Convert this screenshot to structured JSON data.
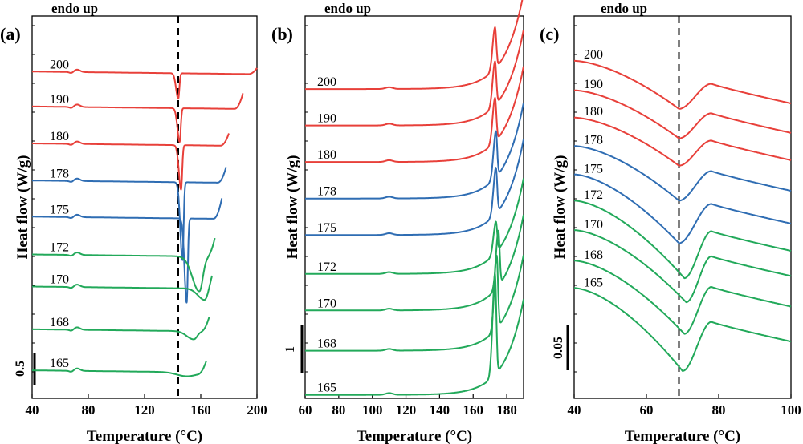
{
  "figure": {
    "panels": [
      "(a)",
      "(b)",
      "(c)"
    ],
    "endo_label": "endo up",
    "xlabel": "Temperature (°C)",
    "ylabel": "Heat flow (W/g)"
  },
  "colors": {
    "red": "#e8403a",
    "blue": "#2f6db3",
    "green": "#22a95a"
  },
  "chart_data": [
    {
      "type": "line",
      "panel": "(a)",
      "xlabel": "Temperature (°C)",
      "ylabel": "Heat flow (W/g)",
      "xlim": [
        40,
        200
      ],
      "xticks": [
        40,
        80,
        120,
        160,
        200
      ],
      "top_label": "endo up",
      "reference_line_x": 144,
      "scale_bar": {
        "label": "0.5",
        "value": 0.5
      },
      "series": [
        {
          "name": "200",
          "color": "red",
          "baseline": 7.95,
          "x_end": 200,
          "peak_type": "sharp_exo",
          "peak_x": 144,
          "depth": 0.62,
          "end_rise": 0.15
        },
        {
          "name": "190",
          "color": "red",
          "baseline": 7.1,
          "x_end": 190,
          "peak_type": "sharp_exo",
          "peak_x": 145,
          "depth": 0.82,
          "end_rise": 0.38
        },
        {
          "name": "180",
          "color": "red",
          "baseline": 6.2,
          "x_end": 180,
          "peak_type": "sharp_exo",
          "peak_x": 146,
          "depth": 1.08,
          "end_rise": 0.3
        },
        {
          "name": "178",
          "color": "blue",
          "baseline": 5.3,
          "x_end": 178,
          "peak_type": "sharp_exo",
          "peak_x": 147,
          "depth": 1.9,
          "end_rise": 0.38
        },
        {
          "name": "175",
          "color": "blue",
          "baseline": 4.42,
          "x_end": 175,
          "peak_type": "sharp_exo",
          "peak_x": 150,
          "depth": 2.05,
          "end_rise": 0.5
        },
        {
          "name": "172",
          "color": "green",
          "baseline": 3.5,
          "x_end": 170,
          "peak_type": "broad_exo",
          "peak_x": 159,
          "depth": 0.85,
          "end_rise": 0.45
        },
        {
          "name": "170",
          "color": "green",
          "baseline": 2.72,
          "x_end": 168,
          "peak_type": "broad_exo",
          "peak_x": 163,
          "depth": 0.28,
          "end_rise": 0.35
        },
        {
          "name": "168",
          "color": "green",
          "baseline": 1.68,
          "x_end": 166,
          "peak_type": "broad_exo",
          "peak_x": 155,
          "depth": 0.2,
          "end_rise": 0.35
        },
        {
          "name": "165",
          "color": "green",
          "baseline": 0.68,
          "x_end": 164,
          "peak_type": "flat",
          "peak_x": 150,
          "depth": 0.1,
          "end_rise": 0.3
        }
      ]
    },
    {
      "type": "line",
      "panel": "(b)",
      "xlabel": "Temperature (°C)",
      "ylabel": "Heat flow (W/g)",
      "xlim": [
        60,
        190
      ],
      "xticks": [
        60,
        80,
        100,
        120,
        140,
        160,
        180
      ],
      "top_label": "endo up",
      "scale_bar": {
        "label": "1",
        "value": 1
      },
      "series": [
        {
          "name": "200",
          "color": "red",
          "baseline": 8.9,
          "peak_x": 173,
          "height": 1.2
        },
        {
          "name": "190",
          "color": "red",
          "baseline": 7.85,
          "peak_x": 173,
          "height": 1.27
        },
        {
          "name": "180",
          "color": "red",
          "baseline": 6.8,
          "peak_x": 173,
          "height": 1.27
        },
        {
          "name": "178",
          "color": "blue",
          "baseline": 5.75,
          "peak_x": 173.5,
          "height": 1.33
        },
        {
          "name": "175",
          "color": "blue",
          "baseline": 4.7,
          "peak_x": 173.5,
          "height": 1.33
        },
        {
          "name": "172",
          "color": "green",
          "baseline": 3.58,
          "peak_x": 173.5,
          "height": 0.9
        },
        {
          "name": "170",
          "color": "green",
          "baseline": 2.53,
          "peak_x": 175,
          "height": 1.6
        },
        {
          "name": "168",
          "color": "green",
          "baseline": 1.37,
          "peak_x": 174,
          "height": 2.1
        },
        {
          "name": "165",
          "color": "green",
          "baseline": 0.1,
          "peak_x": 173,
          "height": 2.9
        }
      ]
    },
    {
      "type": "line",
      "panel": "(c)",
      "xlabel": "Temperature (°C)",
      "ylabel": "Heat flow (W/g)",
      "xlim": [
        40,
        100
      ],
      "xticks": [
        40,
        60,
        80,
        100
      ],
      "top_label": "endo up",
      "reference_line_x": 69,
      "scale_bar": {
        "label": "0.05",
        "value": 0.05
      },
      "series": [
        {
          "name": "200",
          "color": "red",
          "y_start": 0.868,
          "y_min": 0.78,
          "min_x": 69,
          "y_peak": 0.826,
          "peak_x": 78,
          "y_end": 0.79
        },
        {
          "name": "190",
          "color": "red",
          "y_start": 0.814,
          "y_min": 0.726,
          "min_x": 69,
          "y_peak": 0.772,
          "peak_x": 78,
          "y_end": 0.736
        },
        {
          "name": "180",
          "color": "red",
          "y_start": 0.764,
          "y_min": 0.676,
          "min_x": 69,
          "y_peak": 0.722,
          "peak_x": 78,
          "y_end": 0.686
        },
        {
          "name": "178",
          "color": "blue",
          "y_start": 0.712,
          "y_min": 0.612,
          "min_x": 69,
          "y_peak": 0.666,
          "peak_x": 78,
          "y_end": 0.63
        },
        {
          "name": "175",
          "color": "blue",
          "y_start": 0.66,
          "y_min": 0.534,
          "min_x": 69,
          "y_peak": 0.606,
          "peak_x": 78,
          "y_end": 0.57
        },
        {
          "name": "172",
          "color": "green",
          "y_start": 0.612,
          "y_min": 0.47,
          "min_x": 70.5,
          "y_peak": 0.556,
          "peak_x": 78,
          "y_end": 0.52
        },
        {
          "name": "170",
          "color": "green",
          "y_start": 0.558,
          "y_min": 0.426,
          "min_x": 71,
          "y_peak": 0.51,
          "peak_x": 78,
          "y_end": 0.474
        },
        {
          "name": "168",
          "color": "green",
          "y_start": 0.502,
          "y_min": 0.368,
          "min_x": 70.5,
          "y_peak": 0.454,
          "peak_x": 78,
          "y_end": 0.418
        },
        {
          "name": "165",
          "color": "green",
          "y_start": 0.452,
          "y_min": 0.3,
          "min_x": 70,
          "y_peak": 0.39,
          "peak_x": 78,
          "y_end": 0.354
        }
      ]
    }
  ]
}
